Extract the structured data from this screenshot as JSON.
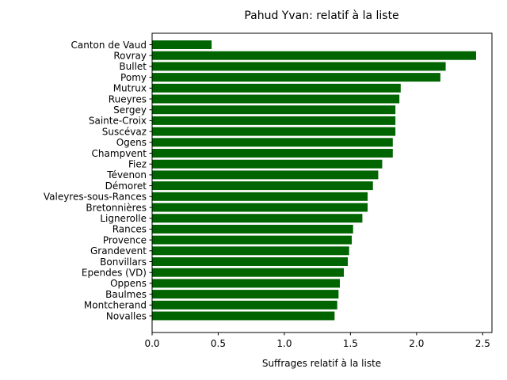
{
  "chart_data": {
    "type": "bar",
    "orientation": "horizontal",
    "title": "Pahud Yvan: relatif à la liste",
    "xlabel": "Suffrages relatif à la liste",
    "ylabel": "",
    "xlim": [
      0,
      2.57
    ],
    "xticks": [
      0.0,
      0.5,
      1.0,
      1.5,
      2.0,
      2.5
    ],
    "xtick_labels": [
      "0.0",
      "0.5",
      "1.0",
      "1.5",
      "2.0",
      "2.5"
    ],
    "grid": false,
    "legend": "none",
    "bar_color": "#006400",
    "categories": [
      "Canton de Vaud",
      "Rovray",
      "Bullet",
      "Pomy",
      "Mutrux",
      "Rueyres",
      "Sergey",
      "Sainte-Croix",
      "Suscévaz",
      "Ogens",
      "Champvent",
      "Fiez",
      "Tévenon",
      "Démoret",
      "Valeyres-sous-Rances",
      "Bretonnières",
      "Lignerolle",
      "Rances",
      "Provence",
      "Grandevent",
      "Bonvillars",
      "Ependes (VD)",
      "Oppens",
      "Baulmes",
      "Montcherand",
      "Novalles"
    ],
    "values": [
      0.45,
      2.45,
      2.22,
      2.18,
      1.88,
      1.87,
      1.84,
      1.84,
      1.84,
      1.82,
      1.82,
      1.74,
      1.71,
      1.67,
      1.63,
      1.63,
      1.59,
      1.52,
      1.51,
      1.49,
      1.48,
      1.45,
      1.42,
      1.41,
      1.4,
      1.38
    ]
  }
}
